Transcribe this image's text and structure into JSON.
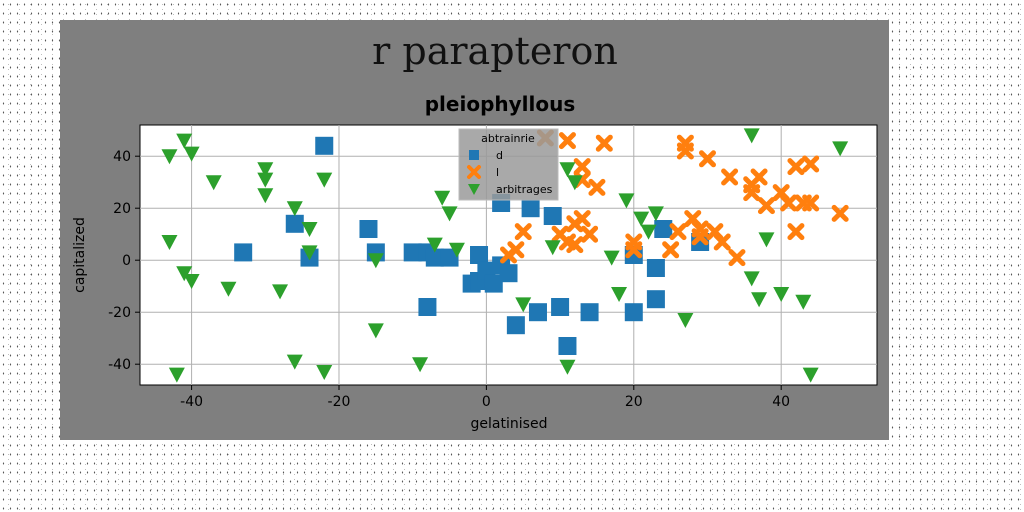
{
  "suptitle": "r parapteron",
  "chart_data": {
    "type": "scatter",
    "title": "pleiophyllous",
    "xlabel": "gelatinised",
    "ylabel": "capitalized",
    "xlim": [
      -47,
      53
    ],
    "ylim": [
      -48,
      52
    ],
    "xticks": [
      -40,
      -20,
      0,
      20,
      40
    ],
    "yticks": [
      -40,
      -20,
      0,
      20,
      40
    ],
    "grid": true,
    "legend": {
      "title": "abtrainrie",
      "position": "top-center"
    },
    "series": [
      {
        "name": "d",
        "marker": "square",
        "color": "#1f77b4",
        "points": [
          [
            -22,
            44
          ],
          [
            -33,
            3
          ],
          [
            -26,
            14
          ],
          [
            -24,
            1
          ],
          [
            -16,
            12
          ],
          [
            -15,
            3
          ],
          [
            -10,
            3
          ],
          [
            -8,
            3
          ],
          [
            -7,
            1
          ],
          [
            -5,
            1
          ],
          [
            -8,
            -18
          ],
          [
            -2,
            -9
          ],
          [
            -1,
            -8
          ],
          [
            -1,
            2
          ],
          [
            0,
            -4
          ],
          [
            1,
            -9
          ],
          [
            2,
            -2
          ],
          [
            3,
            -5
          ],
          [
            2,
            22
          ],
          [
            4,
            -25
          ],
          [
            6,
            20
          ],
          [
            7,
            -20
          ],
          [
            9,
            17
          ],
          [
            10,
            -18
          ],
          [
            11,
            -33
          ],
          [
            14,
            -20
          ],
          [
            20,
            2
          ],
          [
            20,
            -20
          ],
          [
            23,
            -3
          ],
          [
            23,
            -15
          ],
          [
            24,
            12
          ],
          [
            29,
            7
          ]
        ]
      },
      {
        "name": "l",
        "marker": "x",
        "color": "#ff7f0e",
        "points": [
          [
            8,
            47
          ],
          [
            11,
            46
          ],
          [
            13,
            36
          ],
          [
            13,
            31
          ],
          [
            15,
            28
          ],
          [
            16,
            45
          ],
          [
            27,
            42
          ],
          [
            27,
            45
          ],
          [
            30,
            39
          ],
          [
            33,
            32
          ],
          [
            36,
            29
          ],
          [
            36,
            26
          ],
          [
            37,
            32
          ],
          [
            38,
            21
          ],
          [
            40,
            26
          ],
          [
            41,
            22
          ],
          [
            42,
            36
          ],
          [
            42,
            11
          ],
          [
            43,
            22
          ],
          [
            44,
            37
          ],
          [
            44,
            22
          ],
          [
            48,
            18
          ],
          [
            3,
            2
          ],
          [
            4,
            4
          ],
          [
            5,
            11
          ],
          [
            10,
            10
          ],
          [
            11,
            7
          ],
          [
            12,
            14
          ],
          [
            13,
            16
          ],
          [
            14,
            10
          ],
          [
            12,
            6
          ],
          [
            20,
            4
          ],
          [
            20,
            7
          ],
          [
            25,
            4
          ],
          [
            26,
            11
          ],
          [
            28,
            16
          ],
          [
            29,
            12
          ],
          [
            29,
            9
          ],
          [
            31,
            11
          ],
          [
            32,
            7
          ],
          [
            34,
            1
          ]
        ]
      },
      {
        "name": "arbitrages",
        "marker": "triangle-down",
        "color": "#2ca02c",
        "points": [
          [
            -43,
            40
          ],
          [
            -41,
            46
          ],
          [
            -40,
            41
          ],
          [
            -37,
            30
          ],
          [
            -30,
            35
          ],
          [
            -30,
            31
          ],
          [
            -30,
            25
          ],
          [
            -26,
            20
          ],
          [
            -22,
            31
          ],
          [
            -24,
            12
          ],
          [
            -24,
            3
          ],
          [
            -43,
            7
          ],
          [
            -41,
            -5
          ],
          [
            -40,
            -8
          ],
          [
            -35,
            -11
          ],
          [
            -28,
            -12
          ],
          [
            -26,
            -39
          ],
          [
            -22,
            -43
          ],
          [
            -42,
            -44
          ],
          [
            -15,
            0
          ],
          [
            -15,
            -27
          ],
          [
            -9,
            -40
          ],
          [
            -7,
            6
          ],
          [
            -6,
            24
          ],
          [
            -5,
            18
          ],
          [
            -4,
            4
          ],
          [
            5,
            -17
          ],
          [
            9,
            5
          ],
          [
            11,
            35
          ],
          [
            12,
            30
          ],
          [
            11,
            -41
          ],
          [
            17,
            1
          ],
          [
            18,
            -13
          ],
          [
            19,
            23
          ],
          [
            21,
            16
          ],
          [
            22,
            11
          ],
          [
            23,
            18
          ],
          [
            27,
            -23
          ],
          [
            37,
            -15
          ],
          [
            36,
            -7
          ],
          [
            36,
            48
          ],
          [
            38,
            8
          ],
          [
            40,
            -13
          ],
          [
            43,
            -16
          ],
          [
            44,
            -44
          ],
          [
            48,
            43
          ]
        ]
      }
    ]
  }
}
